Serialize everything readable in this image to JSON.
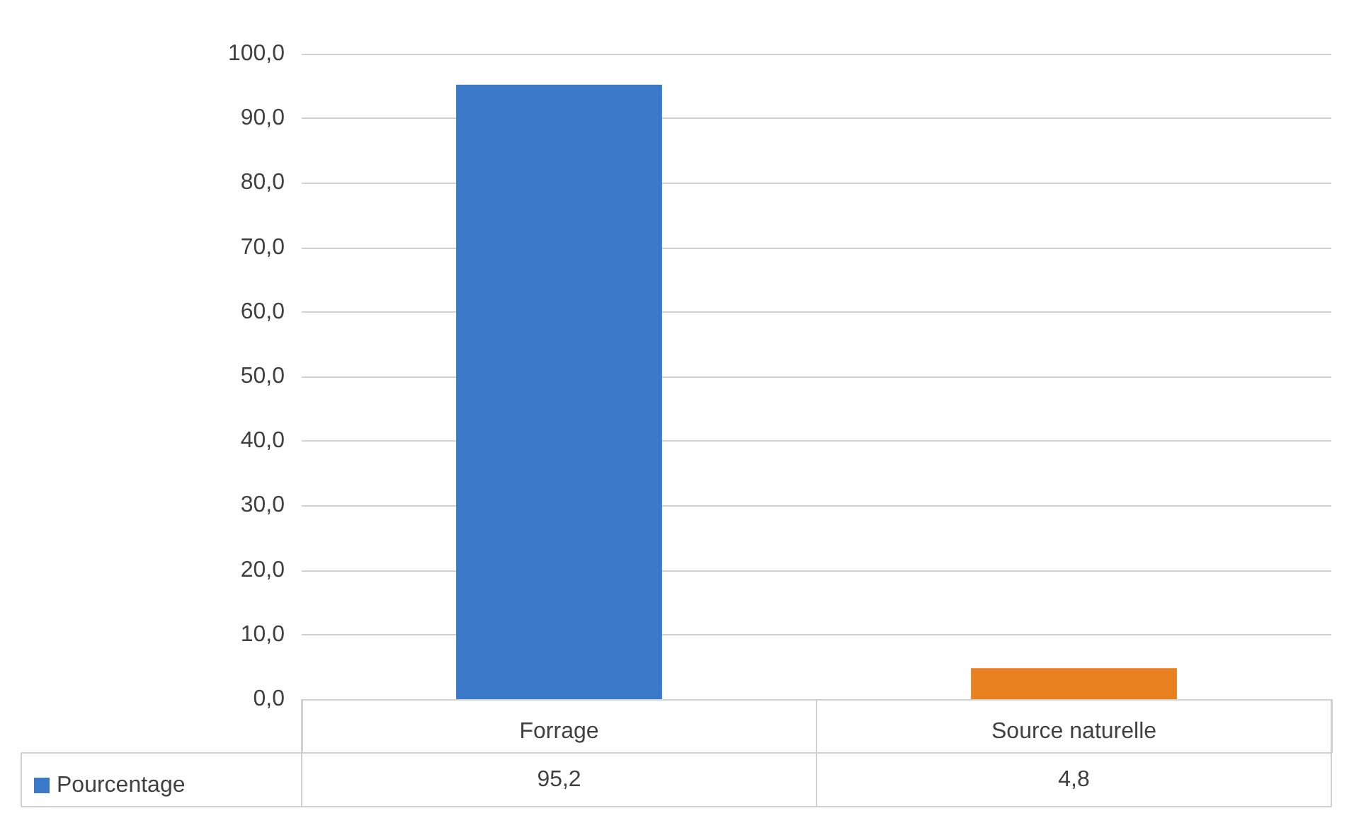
{
  "chart_data": {
    "type": "bar",
    "categories": [
      "Forrage",
      "Source naturelle"
    ],
    "series": [
      {
        "name": "Pourcentage",
        "color": "#3a78c8",
        "colors": [
          "#3a78c8",
          "#e8801f"
        ],
        "values": [
          95.2,
          4.8
        ],
        "value_labels": [
          "95,2",
          "4,8"
        ]
      }
    ],
    "ylim": [
      0,
      100
    ],
    "yticks": [
      {
        "value": 0,
        "label": "0,0"
      },
      {
        "value": 10,
        "label": "10,0"
      },
      {
        "value": 20,
        "label": "20,0"
      },
      {
        "value": 30,
        "label": "30,0"
      },
      {
        "value": 40,
        "label": "40,0"
      },
      {
        "value": 50,
        "label": "50,0"
      },
      {
        "value": 60,
        "label": "60,0"
      },
      {
        "value": 70,
        "label": "70,0"
      },
      {
        "value": 80,
        "label": "80,0"
      },
      {
        "value": 90,
        "label": "90,0"
      },
      {
        "value": 100,
        "label": "100,0"
      }
    ],
    "grid": "y",
    "legend": "bottom left"
  }
}
